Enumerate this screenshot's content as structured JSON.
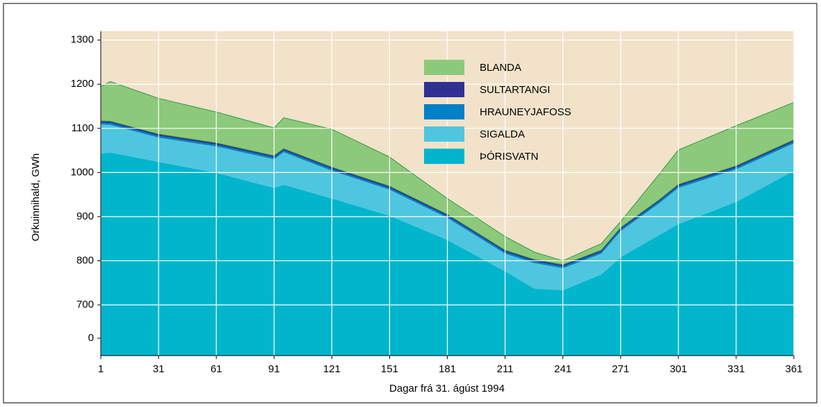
{
  "chart_data": {
    "type": "stacked_area",
    "y_label": "Orkuinnihald, GWh",
    "x_label": "Dagar frá 31. ágúst 1994",
    "x": [
      1,
      6,
      31,
      61,
      91,
      96,
      121,
      151,
      181,
      211,
      226,
      241,
      261,
      271,
      291,
      301,
      331,
      361
    ],
    "series": [
      {
        "name": "ÞÓRISVATN",
        "color": "#00b5cc",
        "values": [
          1043,
          1045,
          1024,
          999,
          965,
          972,
          941,
          902,
          847,
          776,
          737,
          733,
          769,
          808,
          858,
          883,
          933,
          1004
        ]
      },
      {
        "name": "SIGALDA",
        "color": "#4ec6e0",
        "values": [
          66,
          63,
          55,
          60,
          65,
          74,
          63,
          59,
          50,
          40,
          58,
          50,
          47,
          59,
          72,
          82,
          74,
          62
        ]
      },
      {
        "name": "HRAUNEYJAFOSS",
        "color": "#0080c6",
        "values": [
          4,
          4,
          4,
          4,
          4,
          4,
          4,
          4,
          4,
          4,
          4,
          4,
          4,
          4,
          4,
          4,
          4,
          4
        ]
      },
      {
        "name": "SULTARTANGI",
        "color": "#2e3192",
        "values": [
          4,
          4,
          4,
          4,
          4,
          4,
          4,
          4,
          4,
          4,
          4,
          4,
          4,
          4,
          4,
          4,
          4,
          4
        ]
      },
      {
        "name": "BLANDA",
        "color": "#8dc97a",
        "values": [
          78,
          90,
          81,
          70,
          63,
          70,
          86,
          66,
          36,
          31,
          17,
          9,
          15,
          14,
          58,
          78,
          91,
          85
        ]
      }
    ],
    "xlim": [
      1,
      361
    ],
    "xticks": [
      1,
      31,
      61,
      91,
      121,
      151,
      181,
      211,
      241,
      271,
      301,
      331,
      361
    ],
    "ylim": [
      0,
      1320
    ],
    "yticks": [
      0,
      700,
      800,
      900,
      1000,
      1100,
      1200,
      1300
    ],
    "axis_break": [
      0,
      700
    ],
    "grid": true,
    "background": "#f1e2c9"
  }
}
